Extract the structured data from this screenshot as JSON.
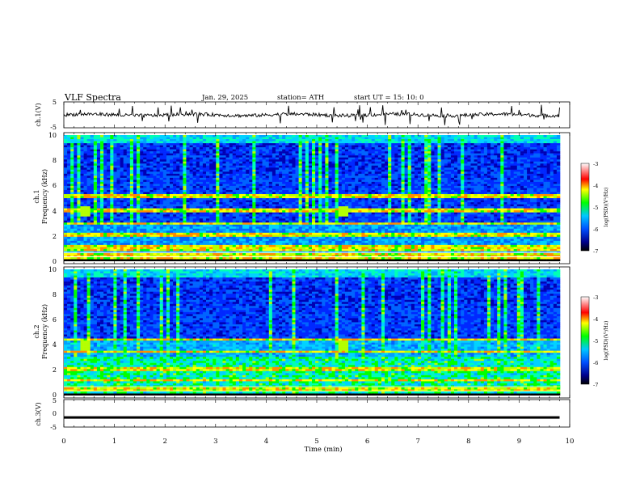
{
  "header": {
    "title": "VLF  Spectra",
    "date": "Jan. 29, 2025",
    "station": "station= ATH",
    "start": "start  UT  =    15: 10: 0"
  },
  "chart_data": [
    {
      "type": "line",
      "ylabel": "ch.1(V)",
      "yticks": [
        "5",
        "-5"
      ],
      "ylim": [
        -5,
        5
      ],
      "xlim": [
        0,
        10
      ],
      "baseline": 0,
      "color": "#000000"
    },
    {
      "type": "heatmap",
      "channel_label": "ch.1",
      "ylabel": "Frequency  (kHz)",
      "yticks": [
        "0",
        "2",
        "4",
        "6",
        "8",
        "10"
      ],
      "ylim": [
        0,
        10
      ],
      "xlim": [
        0,
        10
      ],
      "colorbar": {
        "label": "log(PSD)(V²/Hz)",
        "ticks": [
          "-3",
          "-4",
          "-5",
          "-6",
          "-7"
        ],
        "range": [
          -7,
          -3
        ]
      },
      "bands_khz": [
        0.3,
        0.5,
        0.9,
        1.1,
        2.0,
        2.2,
        3.0,
        4.0,
        5.2
      ],
      "bursts_min": [
        0.4,
        5.5
      ]
    },
    {
      "type": "heatmap",
      "channel_label": "ch.2",
      "ylabel": "Frequency  (kHz)",
      "yticks": [
        "0",
        "2",
        "4",
        "6",
        "8",
        "10"
      ],
      "ylim": [
        0,
        10
      ],
      "xlim": [
        0,
        10
      ],
      "colorbar": {
        "label": "log(PSD)(V²/Hz)",
        "ticks": [
          "-3",
          "-4",
          "-5",
          "-6",
          "-7"
        ],
        "range": [
          -7,
          -3
        ]
      },
      "bands_khz": [
        0.5,
        1.2,
        2.0,
        2.1,
        3.5,
        4.4
      ],
      "bursts_min": [
        0.4,
        5.5
      ]
    },
    {
      "type": "line",
      "ylabel": "ch.3(V)",
      "yticks": [
        "5",
        "0",
        "-5"
      ],
      "ylim": [
        -5,
        5
      ],
      "xlim": [
        0,
        10
      ],
      "baseline": -1.5,
      "color": "#000000"
    }
  ],
  "xaxis": {
    "label": "Time  (min)",
    "ticks": [
      "0",
      "1",
      "2",
      "3",
      "4",
      "5",
      "6",
      "7",
      "8",
      "9",
      "10"
    ],
    "xlim": [
      0,
      10
    ]
  }
}
